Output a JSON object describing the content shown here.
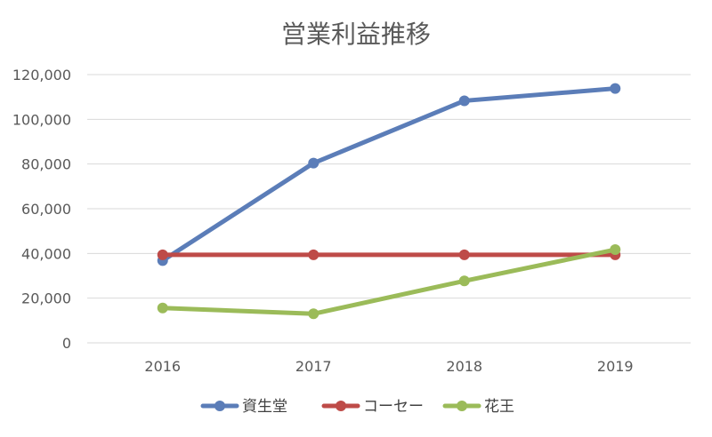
{
  "chart_data": {
    "type": "line",
    "title": "営業利益推移",
    "categories": [
      "2016",
      "2017",
      "2018",
      "2019"
    ],
    "ylim": [
      0,
      120000
    ],
    "yticks": [
      "0",
      "20,000",
      "40,000",
      "60,000",
      "80,000",
      "100,000",
      "120,000"
    ],
    "ytick_values": [
      0,
      20000,
      40000,
      60000,
      80000,
      100000,
      120000
    ],
    "grid": true,
    "legend_position": "bottom",
    "series": [
      {
        "name": "資生堂",
        "color": "#5B7DB8",
        "values": [
          36800,
          80400,
          108300,
          113800
        ]
      },
      {
        "name": "コーセー",
        "color": "#BE4B48",
        "values": [
          39400,
          39400,
          39400,
          39400
        ]
      },
      {
        "name": "花王",
        "color": "#9BBB59",
        "values": [
          15600,
          13000,
          27700,
          41700
        ]
      }
    ]
  }
}
